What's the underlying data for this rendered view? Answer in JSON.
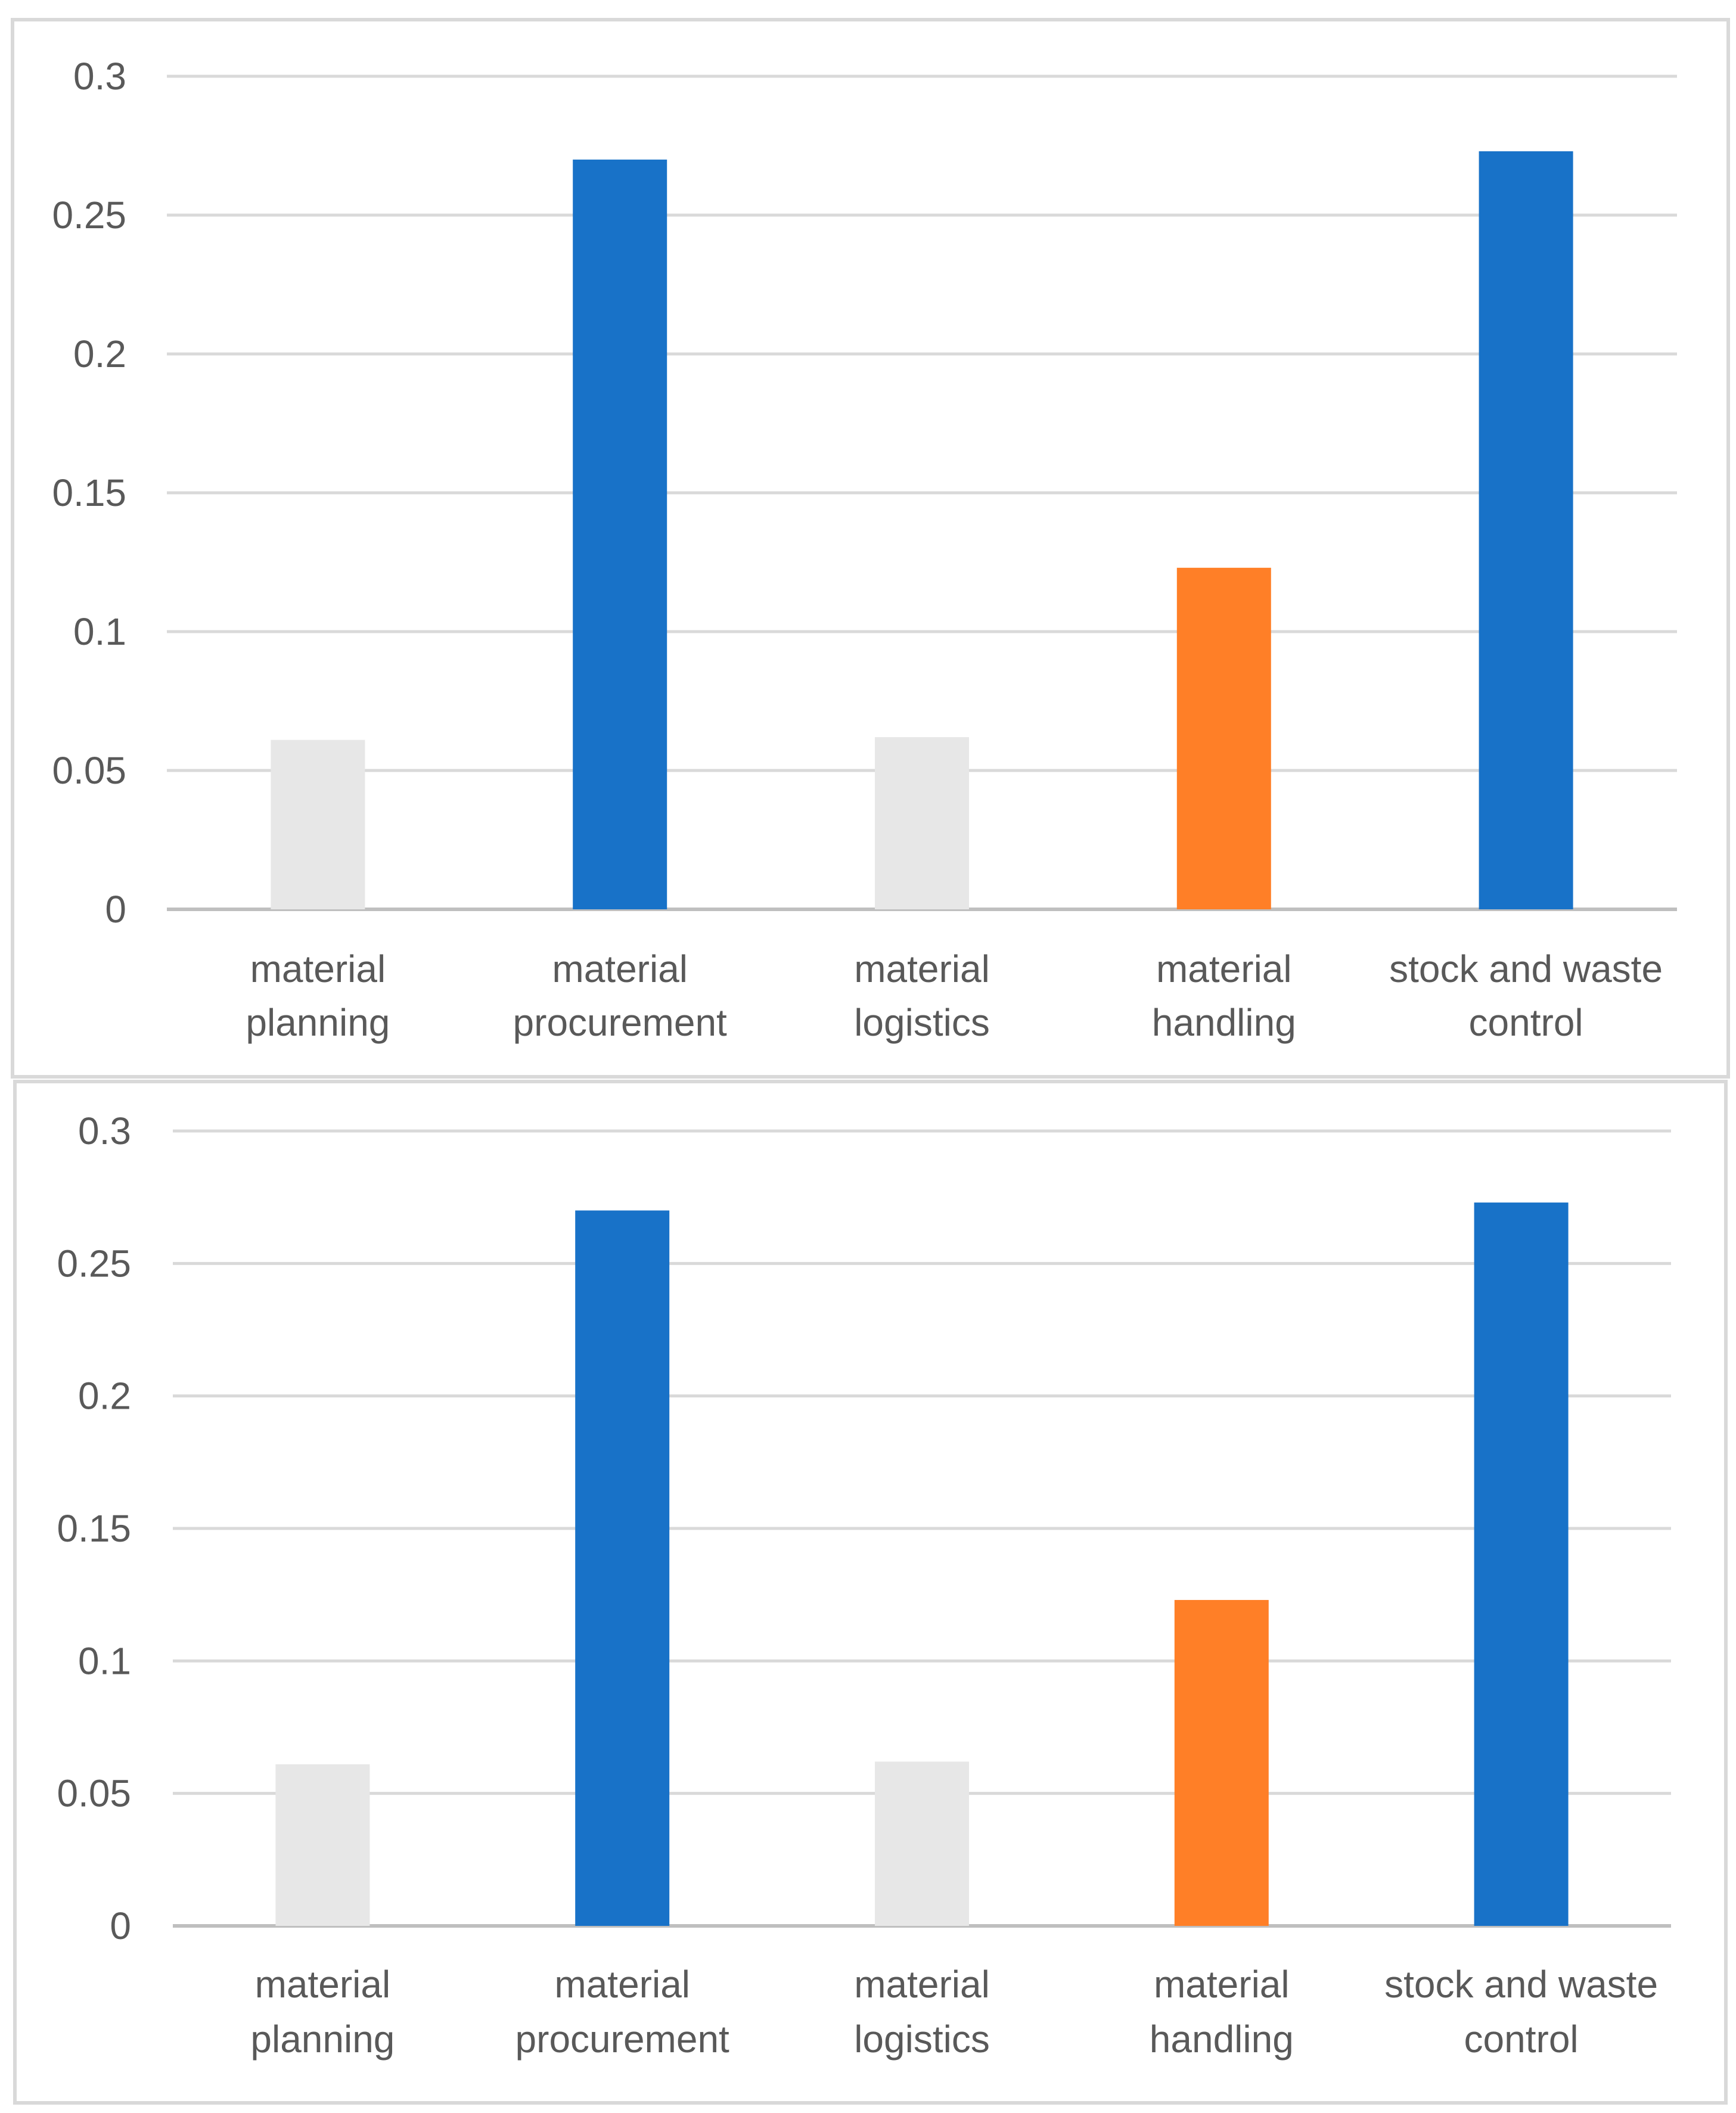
{
  "chart_data": [
    {
      "type": "bar",
      "title": "",
      "xlabel": "",
      "ylabel": "",
      "categories": [
        [
          "material",
          "planning"
        ],
        [
          "material",
          "procurement"
        ],
        [
          "material",
          "logistics"
        ],
        [
          "material",
          "handling"
        ],
        [
          "stock and waste",
          "control"
        ]
      ],
      "values": [
        0.061,
        0.27,
        0.062,
        0.123,
        0.273
      ],
      "bar_colors": [
        "#e7e7e7",
        "#1872c8",
        "#e7e7e7",
        "#ff7f27",
        "#1872c8"
      ],
      "ylim": [
        0,
        0.3
      ],
      "yticks": [
        0,
        0.05,
        0.1,
        0.15,
        0.2,
        0.25,
        0.3
      ],
      "ytick_labels": [
        "0",
        "0.05",
        "0.1",
        "0.15",
        "0.2",
        "0.25",
        "0.3"
      ],
      "grid": true,
      "legend": "none"
    },
    {
      "type": "bar",
      "title": "",
      "xlabel": "",
      "ylabel": "",
      "categories": [
        [
          "material",
          "planning"
        ],
        [
          "material",
          "procurement"
        ],
        [
          "material",
          "logistics"
        ],
        [
          "material",
          "handling"
        ],
        [
          "stock and waste",
          "control"
        ]
      ],
      "values": [
        0.061,
        0.27,
        0.062,
        0.123,
        0.273
      ],
      "bar_colors": [
        "#e7e7e7",
        "#1872c8",
        "#e7e7e7",
        "#ff7f27",
        "#1872c8"
      ],
      "ylim": [
        0,
        0.3
      ],
      "yticks": [
        0,
        0.05,
        0.1,
        0.15,
        0.2,
        0.25,
        0.3
      ],
      "ytick_labels": [
        "0",
        "0.05",
        "0.1",
        "0.15",
        "0.2",
        "0.25",
        "0.3"
      ],
      "grid": true,
      "legend": "none"
    }
  ],
  "style": {
    "grid_color": "#d9d9d9",
    "axis_color": "#bfbfbf",
    "text_color": "#595959"
  }
}
